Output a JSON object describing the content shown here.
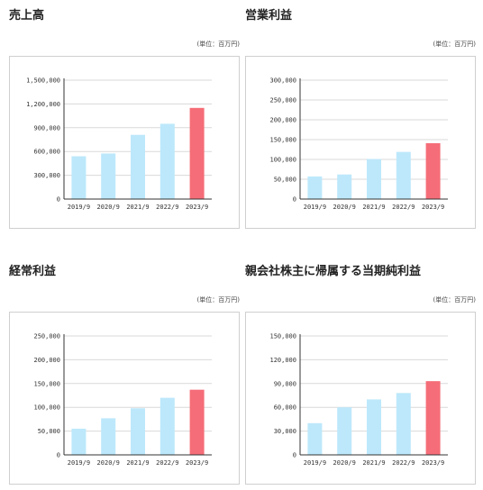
{
  "colors": {
    "past": "#bde8fb",
    "latest": "#f56d78",
    "grid": "#d9d9d9",
    "axis": "#333333"
  },
  "chart_data": [
    {
      "type": "bar",
      "title": "売上高",
      "unit_label": "(単位：百万円)",
      "categories": [
        "2019/9",
        "2020/9",
        "2021/9",
        "2022/9",
        "2023/9"
      ],
      "values": [
        540000,
        575000,
        810000,
        950000,
        1150000
      ],
      "ylim": [
        0,
        1500000
      ],
      "yticks": [
        0,
        300000,
        600000,
        900000,
        1200000,
        1500000
      ],
      "ytick_labels": [
        "0",
        "300,000",
        "600,000",
        "900,000",
        "1,200,000",
        "1,500,000"
      ],
      "grid": true
    },
    {
      "type": "bar",
      "title": "営業利益",
      "unit_label": "(単位：百万円)",
      "categories": [
        "2019/9",
        "2020/9",
        "2021/9",
        "2022/9",
        "2023/9"
      ],
      "values": [
        57000,
        62000,
        101000,
        119000,
        141000
      ],
      "ylim": [
        0,
        300000
      ],
      "yticks": [
        0,
        50000,
        100000,
        150000,
        200000,
        250000,
        300000
      ],
      "ytick_labels": [
        "0",
        "50,000",
        "100,000",
        "150,000",
        "200,000",
        "250,000",
        "300,000"
      ],
      "grid": true
    },
    {
      "type": "bar",
      "title": "経常利益",
      "unit_label": "(単位：百万円)",
      "categories": [
        "2019/9",
        "2020/9",
        "2021/9",
        "2022/9",
        "2023/9"
      ],
      "values": [
        55000,
        77000,
        98000,
        120000,
        137000
      ],
      "ylim": [
        0,
        250000
      ],
      "yticks": [
        0,
        50000,
        100000,
        150000,
        200000,
        250000
      ],
      "ytick_labels": [
        "0",
        "50,000",
        "100,000",
        "150,000",
        "200,000",
        "250,000"
      ],
      "grid": true
    },
    {
      "type": "bar",
      "title": "親会社株主に帰属する当期純利益",
      "unit_label": "(単位：百万円)",
      "categories": [
        "2019/9",
        "2020/9",
        "2021/9",
        "2022/9",
        "2023/9"
      ],
      "values": [
        40000,
        60000,
        70000,
        78000,
        93000
      ],
      "ylim": [
        0,
        150000
      ],
      "yticks": [
        0,
        30000,
        60000,
        90000,
        120000,
        150000
      ],
      "ytick_labels": [
        "0",
        "30,000",
        "60,000",
        "90,000",
        "120,000",
        "150,000"
      ],
      "grid": true
    }
  ]
}
